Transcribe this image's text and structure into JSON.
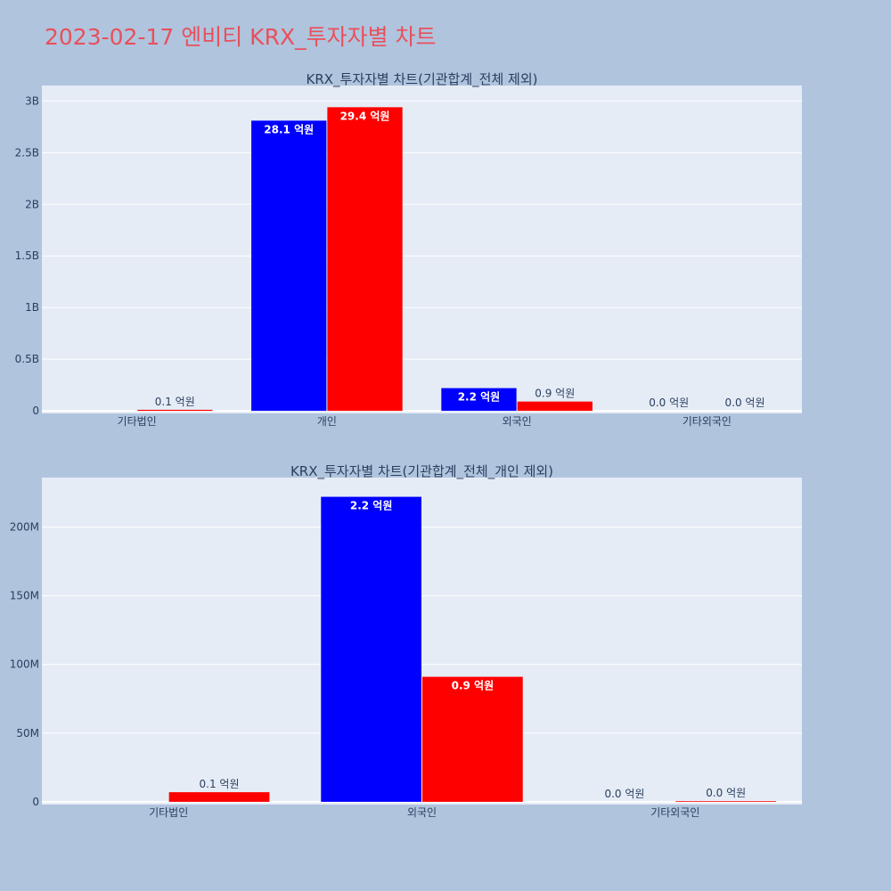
{
  "page": {
    "title": "2023-02-17 엔비티 KRX_투자자별 차트"
  },
  "colors": {
    "background": "#b0c4de",
    "plot_background": "#e5ecf6",
    "title": "#e8505b",
    "series_buy": "#0000ff",
    "series_sell": "#ff0000"
  },
  "chart_data": [
    {
      "type": "bar",
      "title": "KRX_투자자별 차트(기관합계_전체 제외)",
      "categories": [
        "기타법인",
        "개인",
        "외국인",
        "기타외국인"
      ],
      "series": [
        {
          "color": "#0000ff",
          "values": [
            0,
            2810000000,
            220000000,
            0
          ],
          "labels": [
            "",
            "28.1 억원",
            "2.2 억원",
            "0.0 억원"
          ]
        },
        {
          "color": "#ff0000",
          "values": [
            10000000,
            2940000000,
            90000000,
            0
          ],
          "labels": [
            "0.1 억원",
            "29.4 억원",
            "0.9 억원",
            "0.0 억원"
          ]
        }
      ],
      "yticks": [
        0,
        500000000,
        1000000000,
        1500000000,
        2000000000,
        2500000000,
        3000000000
      ],
      "ytick_labels": [
        "0",
        "0.5B",
        "1B",
        "1.5B",
        "2B",
        "2.5B",
        "3B"
      ],
      "ylim": [
        -25000000,
        3150000000
      ],
      "grid": true
    },
    {
      "type": "bar",
      "title": "KRX_투자자별 차트(기관합계_전체_개인 제외)",
      "categories": [
        "기타법인",
        "외국인",
        "기타외국인"
      ],
      "series": [
        {
          "color": "#0000ff",
          "values": [
            0,
            222000000,
            0
          ],
          "labels": [
            "",
            "2.2 억원",
            "0.0 억원"
          ]
        },
        {
          "color": "#ff0000",
          "values": [
            7000000,
            91000000,
            500000
          ],
          "labels": [
            "0.1 억원",
            "0.9 억원",
            "0.0 억원"
          ]
        }
      ],
      "yticks": [
        0,
        50000000,
        100000000,
        150000000,
        200000000
      ],
      "ytick_labels": [
        "0",
        "50M",
        "100M",
        "150M",
        "200M"
      ],
      "ylim": [
        -2000000,
        236000000
      ],
      "grid": true
    }
  ]
}
